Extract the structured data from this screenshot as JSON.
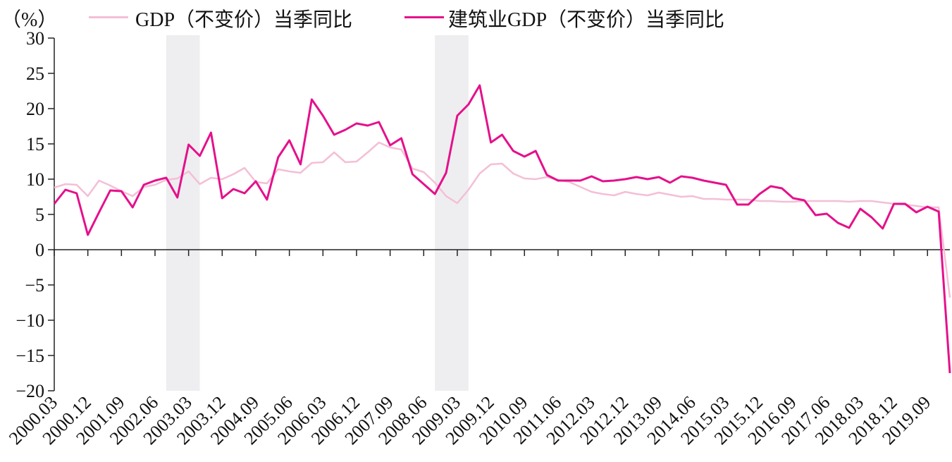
{
  "chart_data": {
    "type": "line",
    "unit_label": "（%）",
    "ylim": [
      -20,
      30
    ],
    "yticks": [
      30,
      25,
      20,
      15,
      10,
      5,
      0,
      -5,
      -10,
      -15,
      -20
    ],
    "x": [
      "2000.03",
      "2000.06",
      "2000.09",
      "2000.12",
      "2001.03",
      "2001.06",
      "2001.09",
      "2001.12",
      "2002.03",
      "2002.06",
      "2002.09",
      "2002.12",
      "2003.03",
      "2003.06",
      "2003.09",
      "2003.12",
      "2004.03",
      "2004.06",
      "2004.09",
      "2004.12",
      "2005.03",
      "2005.06",
      "2005.09",
      "2005.12",
      "2006.03",
      "2006.06",
      "2006.09",
      "2006.12",
      "2007.03",
      "2007.06",
      "2007.09",
      "2007.12",
      "2008.03",
      "2008.06",
      "2008.09",
      "2008.12",
      "2009.03",
      "2009.06",
      "2009.09",
      "2009.12",
      "2010.03",
      "2010.06",
      "2010.09",
      "2010.12",
      "2011.03",
      "2011.06",
      "2011.09",
      "2011.12",
      "2012.03",
      "2012.06",
      "2012.09",
      "2012.12",
      "2013.03",
      "2013.06",
      "2013.09",
      "2013.12",
      "2014.03",
      "2014.06",
      "2014.09",
      "2014.12",
      "2015.03",
      "2015.06",
      "2015.09",
      "2015.12",
      "2016.03",
      "2016.06",
      "2016.09",
      "2016.12",
      "2017.03",
      "2017.06",
      "2017.09",
      "2017.12",
      "2018.03",
      "2018.06",
      "2018.09",
      "2018.12",
      "2019.03",
      "2019.06",
      "2019.09",
      "2019.12",
      "2020.03"
    ],
    "xtick_labels": [
      "2000.03",
      "2000.12",
      "2001.09",
      "2002.06",
      "2003.03",
      "2003.12",
      "2004.09",
      "2005.06",
      "2006.03",
      "2006.12",
      "2007.09",
      "2008.06",
      "2009.03",
      "2009.12",
      "2010.09",
      "2011.06",
      "2012.03",
      "2012.12",
      "2013.09",
      "2014.06",
      "2015.03",
      "2015.12",
      "2016.09",
      "2017.06",
      "2018.03",
      "2018.12",
      "2019.09"
    ],
    "shaded_ranges": [
      [
        "2002.09",
        "2003.06"
      ],
      [
        "2008.09",
        "2009.06"
      ]
    ],
    "series": [
      {
        "name": "GDP（不变价）当季同比",
        "color": "#f4bfd6",
        "values": [
          8.8,
          9.3,
          9.2,
          7.6,
          9.8,
          9.1,
          8.3,
          7.6,
          8.9,
          9.2,
          9.9,
          10.1,
          11.1,
          9.3,
          10.2,
          10.0,
          10.7,
          11.6,
          9.6,
          9.4,
          11.4,
          11.1,
          10.9,
          12.3,
          12.4,
          13.8,
          12.4,
          12.5,
          13.8,
          15.2,
          14.5,
          14.2,
          11.5,
          11.0,
          9.5,
          7.6,
          6.6,
          8.5,
          10.8,
          12.1,
          12.2,
          10.8,
          10.1,
          10.0,
          10.3,
          9.9,
          9.6,
          8.9,
          8.2,
          7.9,
          7.7,
          8.2,
          7.9,
          7.7,
          8.1,
          7.8,
          7.5,
          7.6,
          7.2,
          7.2,
          7.1,
          7.1,
          7.1,
          6.9,
          6.9,
          6.8,
          6.8,
          6.9,
          6.9,
          6.9,
          6.9,
          6.8,
          6.9,
          6.9,
          6.7,
          6.5,
          6.4,
          6.2,
          6.0,
          6.0,
          -6.8
        ]
      },
      {
        "name": "建筑业GDP（不变价）当季同比",
        "color": "#e5108b",
        "values": [
          6.5,
          8.5,
          8.0,
          2.1,
          5.3,
          8.4,
          8.3,
          6.0,
          9.2,
          9.8,
          10.2,
          7.4,
          14.9,
          13.3,
          16.6,
          7.3,
          8.6,
          8.0,
          9.7,
          7.1,
          13.1,
          15.5,
          12.1,
          21.3,
          19.0,
          16.3,
          17.0,
          17.9,
          17.6,
          18.1,
          14.8,
          15.8,
          10.7,
          9.3,
          7.9,
          10.9,
          19.0,
          20.6,
          23.3,
          15.2,
          16.3,
          14.0,
          13.2,
          14.0,
          10.6,
          9.8,
          9.8,
          9.8,
          10.4,
          9.7,
          9.8,
          10.0,
          10.3,
          10.0,
          10.3,
          9.5,
          10.4,
          10.2,
          9.8,
          9.5,
          9.2,
          6.4,
          6.4,
          7.9,
          9.0,
          8.7,
          7.3,
          7.0,
          4.9,
          5.1,
          3.8,
          3.1,
          5.8,
          4.6,
          3.0,
          6.5,
          6.5,
          5.3,
          6.1,
          5.4,
          -17.5
        ]
      }
    ]
  }
}
